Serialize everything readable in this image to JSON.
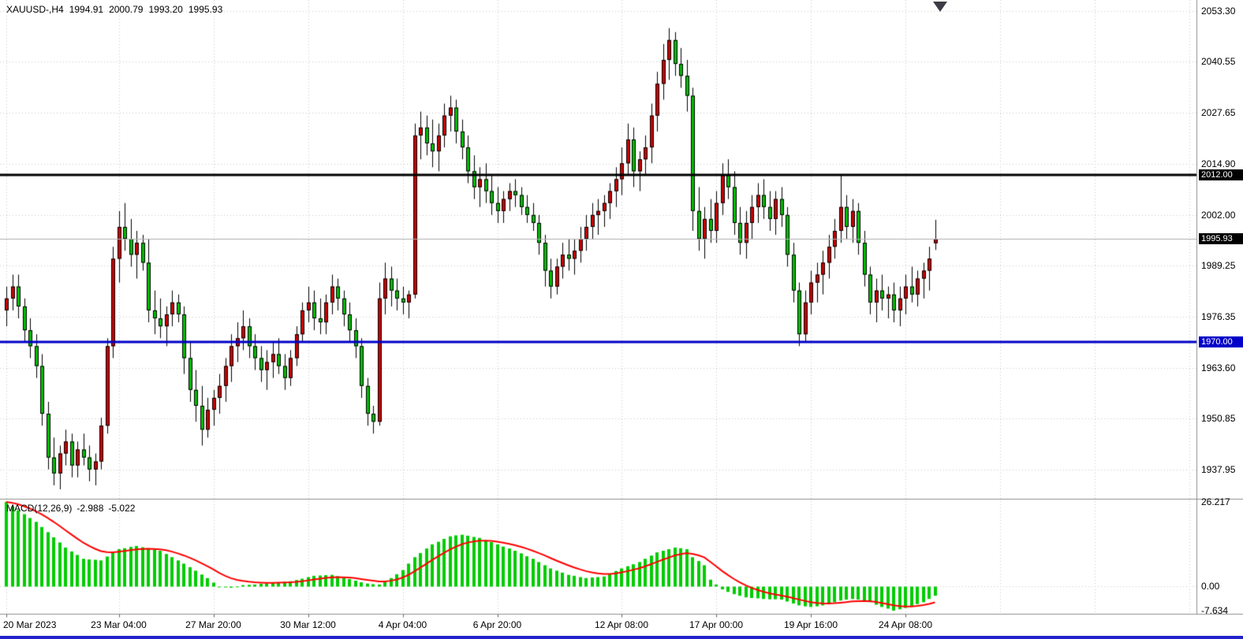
{
  "header": {
    "title": "XAUUSD-,H4",
    "open": "1994.91",
    "high": "2000.79",
    "low": "1993.20",
    "close": "1995.93"
  },
  "colors": {
    "background": "#FFFFFF",
    "bull": "#CC0000",
    "bear": "#00BE00",
    "wick": "#000000",
    "macd_hist": "#00CC00",
    "macd_signal": "#FF0000",
    "grid": "#C8C8C8",
    "separator": "#909090",
    "level_black": "#000000",
    "level_blue": "#0000C8",
    "badge_text": "#FFFFFF",
    "current_price_line": "#B0B0B0",
    "axis_text": "#000000",
    "bottom_strip": "#2222CC"
  },
  "chart_data": {
    "type": "candlestick",
    "symbol": "XAUUSD-",
    "timeframe": "H4",
    "title": "XAUUSD-,H4 1994.91 2000.79 1993.20 1995.93",
    "price_axis": {
      "labels": [
        "2053.30",
        "2040.55",
        "2027.65",
        "2014.90",
        "2002.00",
        "1989.25",
        "1976.35",
        "1963.60",
        "1950.85",
        "1937.95"
      ],
      "top_value": 2053.3,
      "bottom_value": 1937.95
    },
    "time_axis": {
      "labels": [
        {
          "text": "20 Mar 2023",
          "i": 0
        },
        {
          "text": "23 Mar 04:00",
          "i": 19
        },
        {
          "text": "27 Mar 20:00",
          "i": 35
        },
        {
          "text": "30 Mar 12:00",
          "i": 51
        },
        {
          "text": "4 Apr 04:00",
          "i": 67
        },
        {
          "text": "6 Apr 20:00",
          "i": 83
        },
        {
          "text": "12 Apr 08:00",
          "i": 104
        },
        {
          "text": "17 Apr 00:00",
          "i": 120
        },
        {
          "text": "19 Apr 16:00",
          "i": 136
        },
        {
          "text": "24 Apr 08:00",
          "i": 152
        }
      ],
      "future_grid": [
        168,
        184,
        200
      ]
    },
    "levels": [
      {
        "value": 2012.0,
        "label": "2012.00",
        "color": "#000000",
        "width": 3
      },
      {
        "value": 1970.0,
        "label": "1970.00",
        "color": "#0000C8",
        "width": 3
      }
    ],
    "current_price": {
      "value": 1995.93,
      "label": "1995.93"
    },
    "candles": [
      [
        1978,
        1984,
        1974,
        1981
      ],
      [
        1981,
        1987,
        1978,
        1984
      ],
      [
        1984,
        1987,
        1976,
        1979
      ],
      [
        1979,
        1981,
        1970,
        1973
      ],
      [
        1973,
        1976,
        1966,
        1969
      ],
      [
        1969,
        1972,
        1961,
        1964
      ],
      [
        1964,
        1967,
        1949,
        1952
      ],
      [
        1952,
        1955,
        1938,
        1941
      ],
      [
        1941,
        1946,
        1934,
        1937
      ],
      [
        1937,
        1944,
        1933,
        1942
      ],
      [
        1942,
        1948,
        1939,
        1945
      ],
      [
        1945,
        1947,
        1936,
        1939
      ],
      [
        1939,
        1945,
        1936,
        1943
      ],
      [
        1943,
        1947,
        1939,
        1941
      ],
      [
        1941,
        1944,
        1935,
        1938
      ],
      [
        1938,
        1942,
        1934,
        1940
      ],
      [
        1940,
        1951,
        1938,
        1949
      ],
      [
        1949,
        1971,
        1947,
        1969
      ],
      [
        1969,
        1994,
        1966,
        1991
      ],
      [
        1991,
        2003,
        1985,
        1999
      ],
      [
        1999,
        2005,
        1993,
        1996
      ],
      [
        1996,
        2001,
        1989,
        1992
      ],
      [
        1992,
        1998,
        1986,
        1995
      ],
      [
        1995,
        1997,
        1988,
        1990
      ],
      [
        1990,
        1996,
        1975,
        1978
      ],
      [
        1978,
        1983,
        1972,
        1976
      ],
      [
        1976,
        1981,
        1971,
        1974
      ],
      [
        1974,
        1979,
        1969,
        1977
      ],
      [
        1977,
        1983,
        1974,
        1980
      ],
      [
        1980,
        1982,
        1975,
        1977
      ],
      [
        1977,
        1979,
        1962,
        1966
      ],
      [
        1966,
        1970,
        1955,
        1958
      ],
      [
        1958,
        1963,
        1950,
        1954
      ],
      [
        1954,
        1959,
        1944,
        1948
      ],
      [
        1948,
        1956,
        1946,
        1953
      ],
      [
        1953,
        1958,
        1949,
        1956
      ],
      [
        1956,
        1962,
        1952,
        1959
      ],
      [
        1959,
        1966,
        1955,
        1964
      ],
      [
        1964,
        1972,
        1960,
        1969
      ],
      [
        1969,
        1975,
        1965,
        1971
      ],
      [
        1971,
        1978,
        1968,
        1974
      ],
      [
        1974,
        1976,
        1966,
        1969
      ],
      [
        1969,
        1972,
        1963,
        1966
      ],
      [
        1966,
        1969,
        1960,
        1963
      ],
      [
        1963,
        1968,
        1958,
        1965
      ],
      [
        1965,
        1970,
        1961,
        1967
      ],
      [
        1967,
        1971,
        1962,
        1964
      ],
      [
        1964,
        1967,
        1958,
        1961
      ],
      [
        1961,
        1968,
        1959,
        1966
      ],
      [
        1966,
        1974,
        1964,
        1972
      ],
      [
        1972,
        1980,
        1970,
        1978
      ],
      [
        1978,
        1984,
        1975,
        1980
      ],
      [
        1980,
        1983,
        1973,
        1976
      ],
      [
        1976,
        1981,
        1972,
        1975
      ],
      [
        1975,
        1982,
        1972,
        1980
      ],
      [
        1980,
        1987,
        1977,
        1984
      ],
      [
        1984,
        1986,
        1978,
        1981
      ],
      [
        1981,
        1983,
        1974,
        1977
      ],
      [
        1977,
        1980,
        1970,
        1973
      ],
      [
        1973,
        1976,
        1966,
        1969
      ],
      [
        1969,
        1971,
        1956,
        1959
      ],
      [
        1959,
        1961,
        1949,
        1952
      ],
      [
        1952,
        1954,
        1947,
        1950
      ],
      [
        1950,
        1985,
        1949,
        1981
      ],
      [
        1981,
        1990,
        1977,
        1986
      ],
      [
        1986,
        1989,
        1979,
        1983
      ],
      [
        1983,
        1986,
        1978,
        1981
      ],
      [
        1981,
        1984,
        1977,
        1980
      ],
      [
        1980,
        1983,
        1976,
        1982
      ],
      [
        1982,
        2025,
        1981,
        2022
      ],
      [
        2022,
        2028,
        2016,
        2024
      ],
      [
        2024,
        2027,
        2017,
        2020
      ],
      [
        2020,
        2026,
        2014,
        2018
      ],
      [
        2018,
        2025,
        2013,
        2022
      ],
      [
        2022,
        2030,
        2019,
        2027
      ],
      [
        2027,
        2032,
        2023,
        2029
      ],
      [
        2029,
        2031,
        2020,
        2023
      ],
      [
        2023,
        2026,
        2016,
        2019
      ],
      [
        2019,
        2022,
        2010,
        2013
      ],
      [
        2013,
        2017,
        2006,
        2009
      ],
      [
        2009,
        2014,
        2004,
        2011
      ],
      [
        2011,
        2015,
        2005,
        2008
      ],
      [
        2008,
        2012,
        2002,
        2005
      ],
      [
        2005,
        2009,
        2000,
        2003
      ],
      [
        2003,
        2008,
        2000,
        2006
      ],
      [
        2006,
        2010,
        2003,
        2008
      ],
      [
        2008,
        2011,
        2004,
        2007
      ],
      [
        2007,
        2009,
        2002,
        2004
      ],
      [
        2004,
        2007,
        2000,
        2002
      ],
      [
        2002,
        2005,
        1998,
        2000
      ],
      [
        2000,
        2002,
        1992,
        1995
      ],
      [
        1995,
        1997,
        1984,
        1988
      ],
      [
        1988,
        1991,
        1981,
        1984
      ],
      [
        1984,
        1991,
        1982,
        1989
      ],
      [
        1989,
        1995,
        1986,
        1992
      ],
      [
        1992,
        1996,
        1988,
        1991
      ],
      [
        1991,
        1996,
        1987,
        1993
      ],
      [
        1993,
        1999,
        1990,
        1996
      ],
      [
        1996,
        2002,
        1993,
        1999
      ],
      [
        1999,
        2005,
        1996,
        2002
      ],
      [
        2002,
        2006,
        1997,
        2003
      ],
      [
        2003,
        2007,
        1999,
        2005
      ],
      [
        2005,
        2010,
        2001,
        2008
      ],
      [
        2008,
        2014,
        2004,
        2011
      ],
      [
        2011,
        2019,
        2007,
        2015
      ],
      [
        2015,
        2025,
        2012,
        2021
      ],
      [
        2021,
        2024,
        2009,
        2013
      ],
      [
        2013,
        2018,
        2008,
        2016
      ],
      [
        2016,
        2022,
        2012,
        2019
      ],
      [
        2019,
        2030,
        2015,
        2027
      ],
      [
        2027,
        2038,
        2023,
        2035
      ],
      [
        2035,
        2045,
        2031,
        2041
      ],
      [
        2041,
        2049,
        2036,
        2046
      ],
      [
        2046,
        2048,
        2037,
        2040
      ],
      [
        2040,
        2044,
        2034,
        2037
      ],
      [
        2037,
        2041,
        2028,
        2032
      ],
      [
        2032,
        2034,
        1998,
        2003
      ],
      [
        2003,
        2009,
        1993,
        1996
      ],
      [
        1996,
        2004,
        1991,
        2001
      ],
      [
        2001,
        2006,
        1995,
        1998
      ],
      [
        1998,
        2008,
        1995,
        2005
      ],
      [
        2005,
        2015,
        2002,
        2012
      ],
      [
        2012,
        2016,
        2006,
        2009
      ],
      [
        2009,
        2013,
        1997,
        2000
      ],
      [
        2000,
        2004,
        1992,
        1995
      ],
      [
        1995,
        2003,
        1991,
        2000
      ],
      [
        2000,
        2007,
        1996,
        2004
      ],
      [
        2004,
        2010,
        2000,
        2007
      ],
      [
        2007,
        2011,
        2001,
        2004
      ],
      [
        2004,
        2008,
        1998,
        2001
      ],
      [
        2001,
        2008,
        1997,
        2006
      ],
      [
        2006,
        2009,
        1999,
        2002
      ],
      [
        2002,
        2004,
        1989,
        1992
      ],
      [
        1992,
        1995,
        1980,
        1983
      ],
      [
        1983,
        1985,
        1969,
        1972
      ],
      [
        1972,
        1983,
        1970,
        1980
      ],
      [
        1980,
        1988,
        1977,
        1985
      ],
      [
        1985,
        1990,
        1980,
        1987
      ],
      [
        1987,
        1993,
        1982,
        1990
      ],
      [
        1990,
        1997,
        1986,
        1994
      ],
      [
        1994,
        2001,
        1991,
        1998
      ],
      [
        1998,
        2012,
        1995,
        2004
      ],
      [
        2004,
        2007,
        1996,
        1999
      ],
      [
        1999,
        2006,
        1995,
        2003
      ],
      [
        2003,
        2005,
        1992,
        1995
      ],
      [
        1995,
        1998,
        1984,
        1987
      ],
      [
        1987,
        1989,
        1977,
        1980
      ],
      [
        1980,
        1986,
        1975,
        1983
      ],
      [
        1983,
        1987,
        1978,
        1981
      ],
      [
        1981,
        1984,
        1976,
        1982
      ],
      [
        1982,
        1985,
        1975,
        1978
      ],
      [
        1978,
        1984,
        1974,
        1981
      ],
      [
        1981,
        1987,
        1977,
        1984
      ],
      [
        1984,
        1989,
        1980,
        1982
      ],
      [
        1982,
        1988,
        1979,
        1986
      ],
      [
        1986,
        1990,
        1981,
        1988
      ],
      [
        1988,
        1994,
        1983,
        1991
      ],
      [
        1994.91,
        2000.79,
        1993.2,
        1995.93
      ]
    ],
    "indicator": {
      "name": "MACD",
      "label": "MACD(12,26,9)",
      "params": [
        12,
        26,
        9
      ],
      "macd_value": "-2.988",
      "signal_value": "-5.022",
      "axis_labels": [
        "26.217",
        "0.00",
        "-7.634"
      ],
      "axis_max": 26.217,
      "axis_min": -7.634,
      "signal_seed": 26.217,
      "histogram": [
        26.217,
        24.8,
        23.6,
        22.4,
        21.2,
        20,
        18.4,
        16.8,
        15.2,
        13.6,
        12,
        10.8,
        9.7,
        8.5,
        8.3,
        8.2,
        8,
        9.2,
        10.4,
        11.5,
        11.8,
        12.2,
        12.5,
        12.1,
        11.8,
        11.4,
        11,
        10,
        9,
        8,
        7,
        5.9,
        4.8,
        3.6,
        2.5,
        1.1,
        -0.3,
        -0.4,
        -0.5,
        -0.1,
        0.3,
        0.4,
        0.5,
        0.7,
        0.8,
        1.0,
        1.2,
        1.3,
        1.5,
        1.9,
        2.3,
        2.8,
        3.2,
        3.3,
        3.4,
        3.5,
        3.1,
        2.6,
        2.2,
        1.7,
        1.2,
        0.8,
        0.6,
        0.5,
        1.5,
        2.5,
        3.7,
        5,
        7,
        9,
        10.3,
        11.7,
        13,
        13.8,
        14.7,
        15.5,
        15.8,
        16,
        15.7,
        15.3,
        15,
        14.3,
        13.7,
        13,
        12.3,
        11.7,
        11,
        10.2,
        9.3,
        8.5,
        7.5,
        6.5,
        5.5,
        4.8,
        4.2,
        3.5,
        3.2,
        2.8,
        2.5,
        2.7,
        2.8,
        3,
        3.8,
        4.7,
        5.5,
        6.2,
        6.8,
        7.5,
        8.5,
        9.5,
        10.5,
        11,
        11.5,
        12,
        11.8,
        11.5,
        9,
        7.8,
        6.5,
        2,
        0.5,
        -1,
        -1.8,
        -2.5,
        -3,
        -3.5,
        -3.7,
        -3.8,
        -4,
        -4.1,
        -4.1,
        -4.2,
        -4.8,
        -5.4,
        -6,
        -6.3,
        -6.5,
        -6.3,
        -6,
        -5.5,
        -5,
        -4.5,
        -4.2,
        -4,
        -4.2,
        -4.5,
        -5,
        -5.8,
        -6.5,
        -7.0,
        -7.634,
        -7.2,
        -6.8,
        -6.2,
        -5.6,
        -5.0,
        -4.0,
        -2.988
      ]
    }
  }
}
